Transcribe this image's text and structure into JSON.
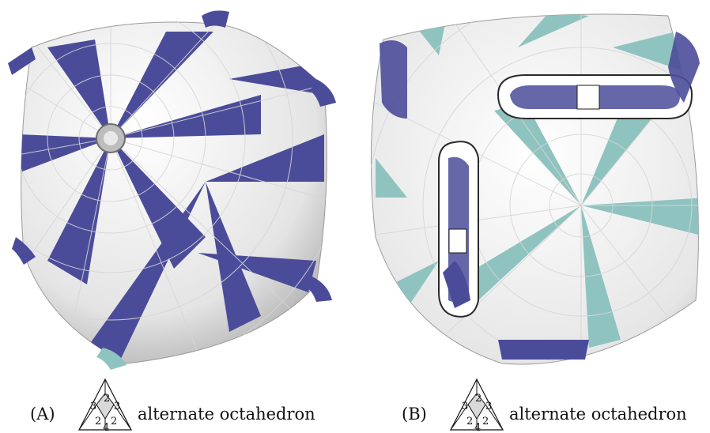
{
  "figure": {
    "panels": [
      {
        "id": "A",
        "label": "(A)",
        "caption": "alternate octahedron",
        "symbol_labels": [
          "2",
          "3",
          "3",
          "2",
          "2",
          "4"
        ],
        "surface_color": "#4b4c99",
        "grid_color": "#d6d6d6",
        "base_color": "#eeeeee"
      },
      {
        "id": "B",
        "label": "(B)",
        "caption": "alternate octahedron",
        "symbol_labels": [
          "2",
          "3",
          "3",
          "2",
          "2",
          "4"
        ],
        "surface_color": "#8fc3c0",
        "accent_color": "#4b4c99",
        "grid_color": "#d6d6d6",
        "base_color": "#eeeeee"
      }
    ]
  }
}
